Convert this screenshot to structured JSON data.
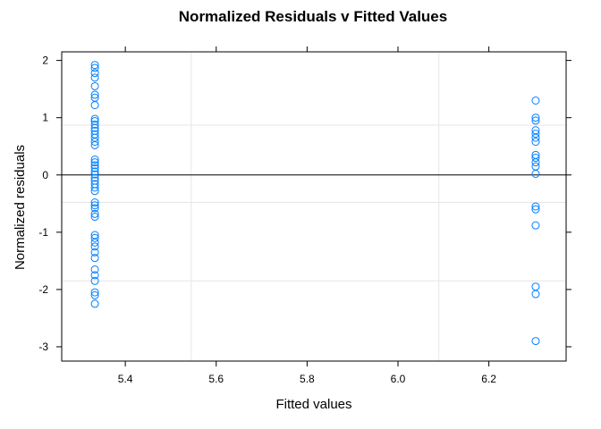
{
  "chart_data": {
    "type": "scatter",
    "title": "Normalized Residuals v Fitted Values",
    "xlabel": "Fitted values",
    "ylabel": "Normalized residuals",
    "xlim": [
      5.26,
      6.37
    ],
    "ylim": [
      -3.25,
      2.15
    ],
    "x_ticks": [
      5.4,
      5.6,
      5.8,
      6.0,
      6.2
    ],
    "x_tick_labels": [
      "5.4",
      "5.6",
      "5.8",
      "6.0",
      "6.2"
    ],
    "y_ticks": [
      2,
      1,
      0,
      -1,
      -2,
      -3
    ],
    "y_tick_labels": [
      "2",
      "1",
      "0",
      "-1",
      "-2",
      "-3"
    ],
    "reference_line_y": 0,
    "reference_grid_x": [
      5.545,
      6.09
    ],
    "reference_grid_y": [
      0.87,
      -0.48,
      -1.85
    ],
    "marker": "open-circle",
    "marker_color": "#0080FF",
    "series": [
      {
        "points": [
          {
            "x": 5.333,
            "y": 1.92
          },
          {
            "x": 5.333,
            "y": 1.87
          },
          {
            "x": 5.333,
            "y": 1.78
          },
          {
            "x": 5.333,
            "y": 1.7
          },
          {
            "x": 5.333,
            "y": 1.55
          },
          {
            "x": 5.333,
            "y": 1.4
          },
          {
            "x": 5.333,
            "y": 1.35
          },
          {
            "x": 5.333,
            "y": 1.22
          },
          {
            "x": 5.333,
            "y": 0.98
          },
          {
            "x": 5.333,
            "y": 0.94
          },
          {
            "x": 5.333,
            "y": 0.88
          },
          {
            "x": 5.333,
            "y": 0.82
          },
          {
            "x": 5.333,
            "y": 0.77
          },
          {
            "x": 5.333,
            "y": 0.71
          },
          {
            "x": 5.333,
            "y": 0.65
          },
          {
            "x": 5.333,
            "y": 0.58
          },
          {
            "x": 5.333,
            "y": 0.52
          },
          {
            "x": 5.333,
            "y": 0.27
          },
          {
            "x": 5.333,
            "y": 0.22
          },
          {
            "x": 5.333,
            "y": 0.17
          },
          {
            "x": 5.333,
            "y": 0.12
          },
          {
            "x": 5.333,
            "y": 0.06
          },
          {
            "x": 5.333,
            "y": 0.01
          },
          {
            "x": 5.333,
            "y": -0.05
          },
          {
            "x": 5.333,
            "y": -0.1
          },
          {
            "x": 5.333,
            "y": -0.16
          },
          {
            "x": 5.333,
            "y": -0.22
          },
          {
            "x": 5.333,
            "y": -0.28
          },
          {
            "x": 5.333,
            "y": -0.48
          },
          {
            "x": 5.333,
            "y": -0.53
          },
          {
            "x": 5.333,
            "y": -0.58
          },
          {
            "x": 5.333,
            "y": -0.68
          },
          {
            "x": 5.333,
            "y": -0.73
          },
          {
            "x": 5.333,
            "y": -1.05
          },
          {
            "x": 5.333,
            "y": -1.1
          },
          {
            "x": 5.333,
            "y": -1.18
          },
          {
            "x": 5.333,
            "y": -1.25
          },
          {
            "x": 5.333,
            "y": -1.35
          },
          {
            "x": 5.333,
            "y": -1.45
          },
          {
            "x": 5.333,
            "y": -1.65
          },
          {
            "x": 5.333,
            "y": -1.75
          },
          {
            "x": 5.333,
            "y": -1.85
          },
          {
            "x": 5.333,
            "y": -2.05
          },
          {
            "x": 5.333,
            "y": -2.1
          },
          {
            "x": 5.333,
            "y": -2.25
          },
          {
            "x": 6.303,
            "y": 1.3
          },
          {
            "x": 6.303,
            "y": 1.0
          },
          {
            "x": 6.303,
            "y": 0.95
          },
          {
            "x": 6.303,
            "y": 0.78
          },
          {
            "x": 6.303,
            "y": 0.72
          },
          {
            "x": 6.303,
            "y": 0.65
          },
          {
            "x": 6.303,
            "y": 0.58
          },
          {
            "x": 6.303,
            "y": 0.35
          },
          {
            "x": 6.303,
            "y": 0.3
          },
          {
            "x": 6.303,
            "y": 0.22
          },
          {
            "x": 6.303,
            "y": 0.15
          },
          {
            "x": 6.303,
            "y": 0.02
          },
          {
            "x": 6.303,
            "y": -0.55
          },
          {
            "x": 6.303,
            "y": -0.6
          },
          {
            "x": 6.303,
            "y": -0.88
          },
          {
            "x": 6.303,
            "y": -1.95
          },
          {
            "x": 6.303,
            "y": -2.08
          },
          {
            "x": 6.303,
            "y": -2.9
          }
        ]
      }
    ]
  }
}
